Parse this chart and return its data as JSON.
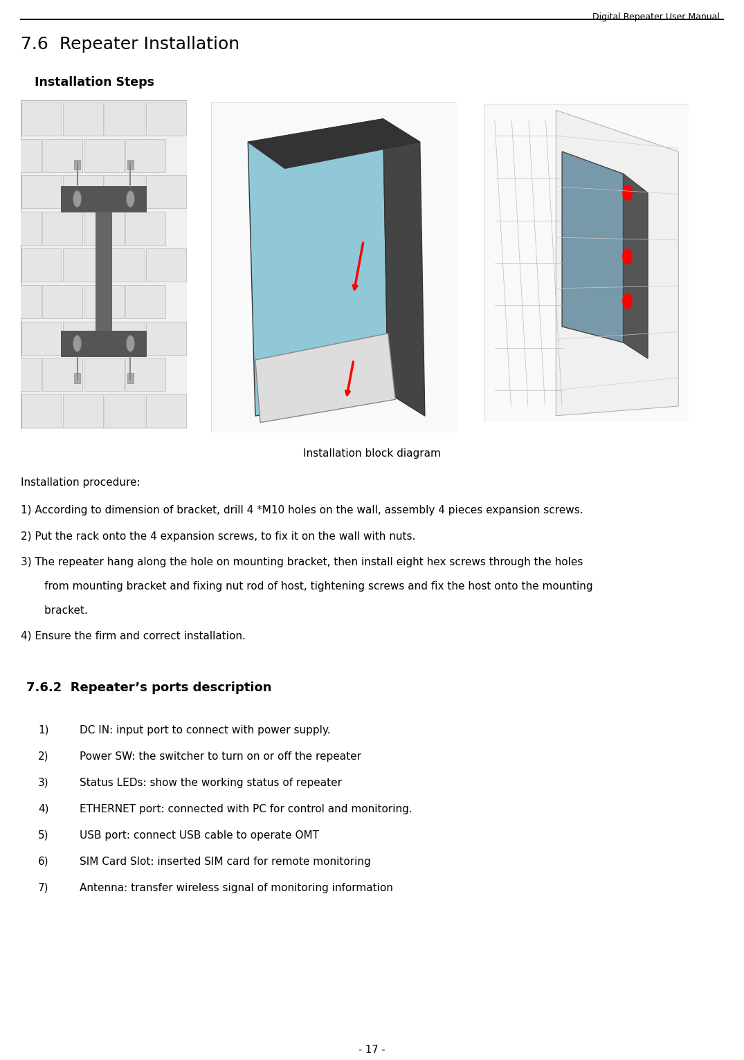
{
  "header_text": "Digital Repeater User Manual",
  "title": "7.6  Repeater Installation",
  "section_title": "Installation Steps",
  "caption": "Installation block diagram",
  "procedure_header": "Installation procedure:",
  "item1": "1) According to dimension of bracket, drill 4 *M10 holes on the wall, assembly 4 pieces expansion screws.",
  "item2": "2) Put the rack onto the 4 expansion screws, to fix it on the wall with nuts.",
  "item3a": "3) The repeater hang along the hole on mounting bracket, then install eight hex screws through the holes",
  "item3b": "       from mounting bracket and fixing nut rod of host, tightening screws and fix the host onto the mounting",
  "item3c": "       bracket.",
  "item4": "4) Ensure the firm and correct installation.",
  "section2_title": "7.6.2  Repeater’s ports description",
  "port_items": [
    [
      "1)",
      "DC IN: input port to connect with power supply."
    ],
    [
      "2)",
      "Power SW: the switcher to turn on or off the repeater"
    ],
    [
      "3)",
      "Status LEDs: show the working status of repeater"
    ],
    [
      "4)",
      "ETHERNET port: connected with PC for control and monitoring."
    ],
    [
      "5)",
      "USB port: connect USB cable to operate OMT"
    ],
    [
      "6)",
      "SIM Card Slot: inserted SIM card for remote monitoring"
    ],
    [
      "7)",
      "Antenna: transfer wireless signal of monitoring information"
    ]
  ],
  "footer_text": "- 17 -",
  "bg_color": "#ffffff",
  "text_color": "#000000"
}
